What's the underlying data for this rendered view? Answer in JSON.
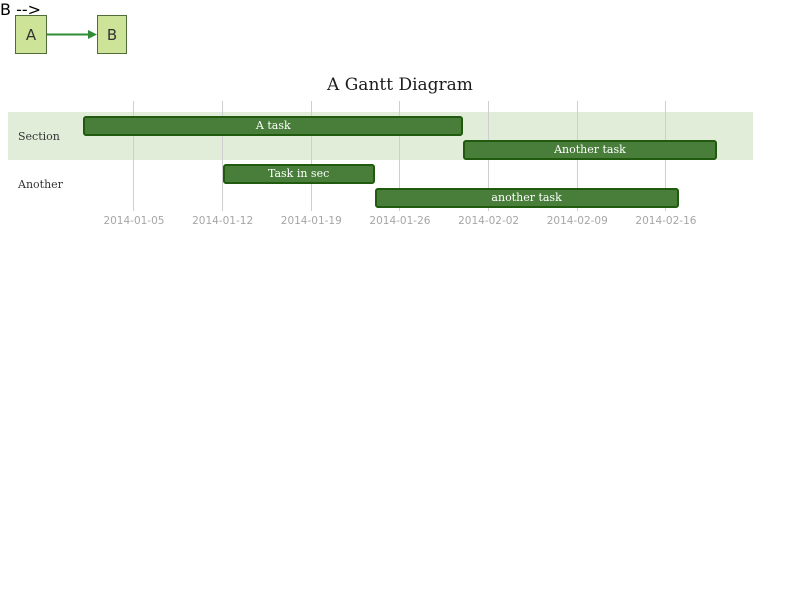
{
  "flowchart": {
    "nodes": [
      {
        "id": "A",
        "label": "A"
      },
      {
        "id": "B",
        "label": "B"
      }
    ],
    "edge": {
      "from": "A",
      "to": "B",
      "style": "arrow-right"
    }
  },
  "chart_data": {
    "type": "gantt",
    "title": "A Gantt Diagram",
    "x_range": [
      "2014-01-01",
      "2014-02-20"
    ],
    "x_tick_labels": [
      "2014-01-05",
      "2014-01-12",
      "2014-01-19",
      "2014-01-26",
      "2014-02-02",
      "2014-02-09",
      "2014-02-16"
    ],
    "sections": [
      {
        "name": "Section",
        "tasks": [
          {
            "label": "A task",
            "start": "2014-01-01",
            "end": "2014-01-31"
          },
          {
            "label": "Another task",
            "start": "2014-01-31",
            "end": "2014-02-20"
          }
        ]
      },
      {
        "name": "Another",
        "tasks": [
          {
            "label": "Task in sec",
            "start": "2014-01-12",
            "end": "2014-01-24"
          },
          {
            "label": "another task",
            "start": "2014-01-24",
            "end": "2014-02-17"
          }
        ]
      }
    ]
  },
  "colors": {
    "node_fill": "#cde498",
    "node_border": "#4f6b38",
    "node_text": "#333333",
    "edge": "#2f8b35",
    "task_fill": "#487e3a",
    "task_border": "#1f5a0f",
    "task_text": "#ffffff",
    "section_band": "#e1edd8",
    "grid_line": "#cfcfcf",
    "tick_text": "#a6a6a6",
    "title_text": "#1c1c1c",
    "section_label": "#333333"
  }
}
